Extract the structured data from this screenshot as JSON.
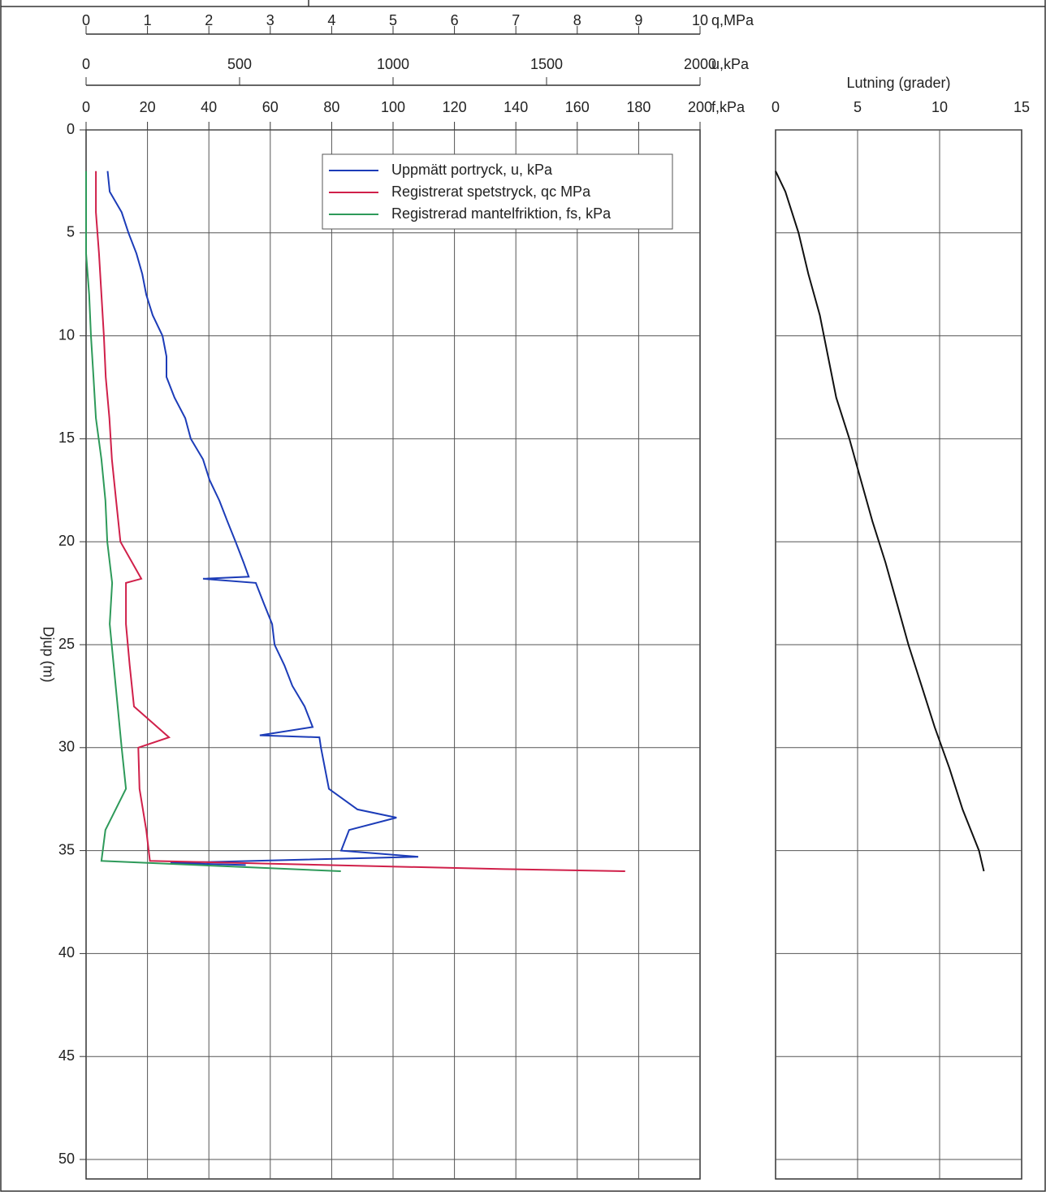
{
  "chart_data": [
    {
      "type": "line",
      "y_label": "Djup (m)",
      "ylim": [
        0,
        50
      ],
      "yticks": [
        0,
        5,
        10,
        15,
        20,
        25,
        30,
        35,
        40,
        45,
        50
      ],
      "grid": true,
      "legend": "upper right",
      "xaxes": [
        {
          "label": "q,MPa",
          "lim": [
            0,
            10
          ],
          "ticks": [
            0,
            1,
            2,
            3,
            4,
            5,
            6,
            7,
            8,
            9,
            10
          ]
        },
        {
          "label": "u,kPa",
          "lim": [
            0,
            2000
          ],
          "ticks": [
            0,
            500,
            1000,
            1500,
            2000
          ]
        },
        {
          "label": "f,kPa",
          "lim": [
            0,
            200
          ],
          "ticks": [
            0,
            20,
            40,
            60,
            80,
            100,
            120,
            140,
            160,
            180,
            200
          ]
        }
      ],
      "series": [
        {
          "name": "Uppmätt portryck, u, kPa",
          "color": "#1c3cb8",
          "axis": 1,
          "depths": [
            2,
            3,
            4,
            5,
            6,
            7,
            8,
            9,
            10,
            11,
            12,
            13,
            14,
            15,
            16,
            17,
            18,
            19,
            20,
            21,
            21.7,
            21.8,
            22,
            23,
            24,
            25,
            26,
            27,
            28,
            29,
            29.4,
            29.5,
            30,
            31,
            32,
            33,
            33.4,
            34,
            35,
            35.3,
            35.6,
            35.7
          ],
          "values": [
            70,
            77,
            116,
            138,
            164,
            183,
            196,
            217,
            249,
            262,
            262,
            288,
            323,
            341,
            381,
            402,
            434,
            460,
            487,
            513,
            530,
            381,
            553,
            579,
            606,
            614,
            646,
            672,
            712,
            738,
            566,
            760,
            765,
            778,
            791,
            884,
            1011,
            857,
            831,
            1082,
            275,
            520
          ]
        },
        {
          "name": "Registrerat spetstryck, qc  MPa",
          "color": "#d0204a",
          "axis": 0,
          "depths": [
            2,
            4,
            6,
            8,
            10,
            12,
            14,
            16,
            18,
            20,
            21.8,
            22,
            24,
            26,
            28,
            29.5,
            30,
            32,
            34,
            35.5,
            35.9,
            36
          ],
          "values": [
            0.16,
            0.16,
            0.21,
            0.25,
            0.29,
            0.32,
            0.38,
            0.42,
            0.49,
            0.56,
            0.9,
            0.65,
            0.65,
            0.71,
            0.78,
            1.35,
            0.85,
            0.87,
            0.98,
            1.04,
            6.8,
            8.78
          ]
        },
        {
          "name": "Registrerad mantelfriktion, fs, kPa",
          "color": "#2e9a5a",
          "axis": 2,
          "depths": [
            2,
            4,
            6,
            8,
            10,
            12,
            14,
            16,
            18,
            20,
            22,
            24,
            26,
            28,
            30,
            32,
            34,
            35.5,
            36
          ],
          "values": [
            0,
            0,
            0,
            1,
            1.6,
            2.4,
            3.2,
            5,
            6.3,
            6.9,
            8.5,
            7.7,
            9,
            10.3,
            11.6,
            13,
            6.3,
            5,
            83
          ]
        }
      ]
    },
    {
      "type": "line",
      "x_label": "Lutning (grader)",
      "xlim": [
        0,
        15
      ],
      "xticks": [
        0,
        5,
        10,
        15
      ],
      "ylim": [
        0,
        50
      ],
      "yticks": [
        0,
        5,
        10,
        15,
        20,
        25,
        30,
        35,
        40,
        45,
        50
      ],
      "grid": true,
      "series": [
        {
          "color": "#111111",
          "depths": [
            2,
            3,
            5,
            7,
            9,
            11,
            13,
            15,
            17,
            19,
            21,
            23,
            25,
            27,
            29,
            31,
            33,
            35,
            36
          ],
          "values": [
            0,
            0.6,
            1.4,
            2,
            2.7,
            3.2,
            3.7,
            4.5,
            5.2,
            5.9,
            6.7,
            7.4,
            8.1,
            8.9,
            9.7,
            10.6,
            11.4,
            12.4,
            12.7
          ]
        }
      ]
    }
  ]
}
